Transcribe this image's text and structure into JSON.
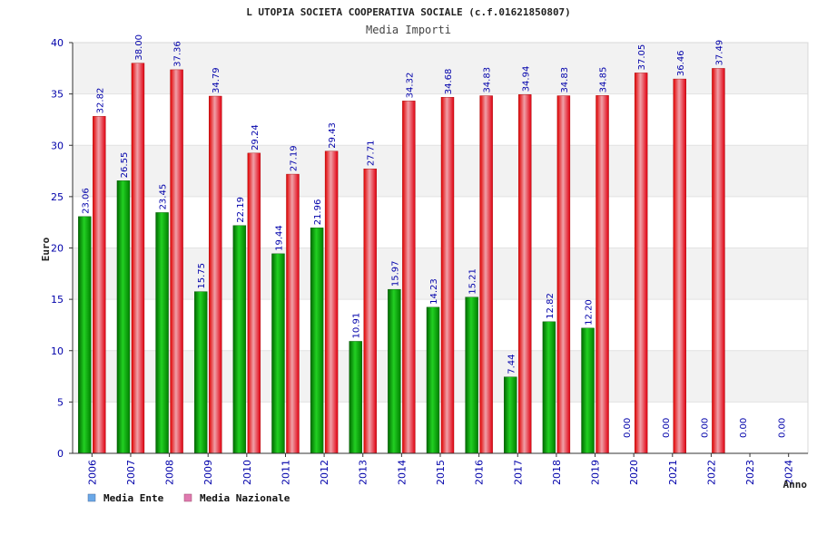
{
  "chart_data": {
    "type": "bar",
    "title": "L UTOPIA SOCIETA COOPERATIVA SOCIALE (c.f.01621850807)",
    "subtitle": "Media Importi",
    "xlabel": "Anno",
    "ylabel": "Euro",
    "ylim": [
      0,
      40
    ],
    "yticks": [
      0,
      5,
      10,
      15,
      20,
      25,
      30,
      35,
      40
    ],
    "categories": [
      "2006",
      "2007",
      "2008",
      "2009",
      "2010",
      "2011",
      "2012",
      "2013",
      "2014",
      "2015",
      "2016",
      "2017",
      "2018",
      "2019",
      "2020",
      "2021",
      "2022",
      "2023",
      "2024"
    ],
    "series": [
      {
        "name": "Media Ente",
        "color": "#00b000",
        "values": [
          23.06,
          26.55,
          23.45,
          15.75,
          22.19,
          19.44,
          21.96,
          10.91,
          15.97,
          14.23,
          15.21,
          7.44,
          12.82,
          12.2,
          0.0,
          0.0,
          0.0,
          0.0,
          0.0
        ],
        "labels": [
          "23.06",
          "26.55",
          "23.45",
          "15.75",
          "22.19",
          "19.44",
          "21.96",
          "10.91",
          "15.97",
          "14.23",
          "15.21",
          "7.44",
          "12.82",
          "12.20",
          "0.00",
          "0.00",
          "0.00",
          "0.00",
          "0.00"
        ]
      },
      {
        "name": "Media Nazionale",
        "color": "#e82020",
        "values": [
          32.82,
          38.0,
          37.36,
          34.79,
          29.24,
          27.19,
          29.43,
          27.71,
          34.32,
          34.68,
          34.83,
          34.94,
          34.83,
          34.85,
          37.05,
          36.46,
          37.49,
          null,
          null
        ],
        "labels": [
          "32.82",
          "38.00",
          "37.36",
          "34.79",
          "29.24",
          "27.19",
          "29.43",
          "27.71",
          "34.32",
          "34.68",
          "34.83",
          "34.94",
          "34.83",
          "34.85",
          "37.05",
          "36.46",
          "37.49",
          null,
          null
        ]
      }
    ],
    "legend": [
      {
        "label": "Media Ente",
        "color": "#6aa8e8"
      },
      {
        "label": "Media Nazionale",
        "color": "#e07ab0"
      }
    ],
    "legend_position": "bottom-left",
    "grid": true
  }
}
